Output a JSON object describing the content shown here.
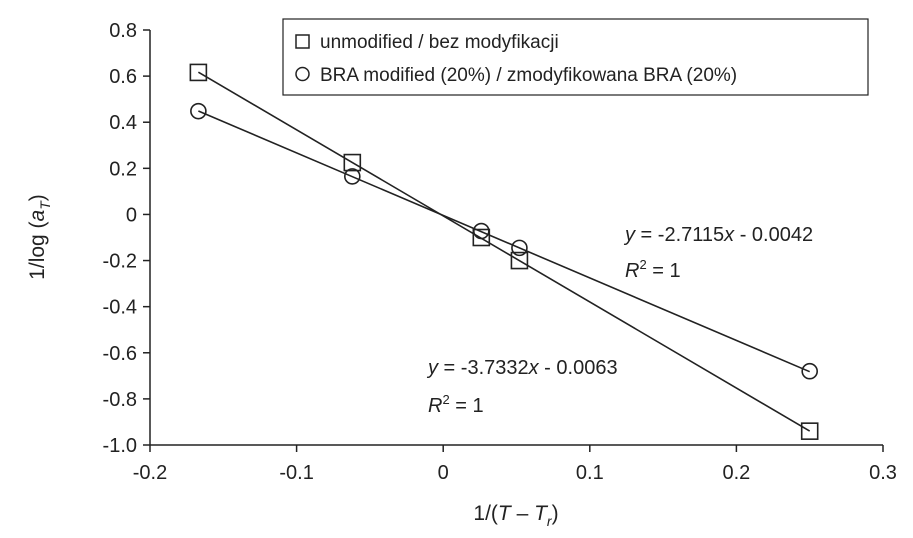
{
  "chart_data": {
    "type": "scatter",
    "xlabel": {
      "prefix": "1/(",
      "var": "T",
      "minus": " – ",
      "var2": "T",
      "sub": "r",
      "suffix": ")"
    },
    "ylabel": {
      "prefix": "1/log (",
      "var": "a",
      "sub": "T",
      "suffix": ")"
    },
    "xlim": [
      -0.2,
      0.3
    ],
    "ylim": [
      -1.0,
      0.8
    ],
    "xticks": [
      "-0.2",
      "-0.1",
      "0",
      "0.1",
      "0.2",
      "0.3"
    ],
    "yticks": [
      "0.8",
      "0.6",
      "0.4",
      "0.2",
      "0",
      "-0.2",
      "-0.4",
      "-0.6",
      "-0.8",
      "-1.0"
    ],
    "legend_position": "top-right",
    "grid": false,
    "series": [
      {
        "name": "unmodified / bez modyfikacji",
        "marker": "square",
        "x": [
          -0.167,
          -0.062,
          0.026,
          0.052,
          0.25
        ],
        "y": [
          0.616,
          0.225,
          -0.1,
          -0.2,
          -0.94
        ],
        "fit": {
          "slope": -3.7332,
          "intercept": -0.0063,
          "x_range": [
            -0.167,
            0.25
          ]
        },
        "equation": {
          "y": "y",
          "rest": " = -3.7332",
          "x": "x",
          "tail": " - 0.0063"
        },
        "r2": {
          "r": "R",
          "sup": "2",
          "rest": " = 1"
        }
      },
      {
        "name": "BRA modified (20%) / zmodyfikowana BRA (20%)",
        "marker": "circle",
        "x": [
          -0.167,
          -0.062,
          0.026,
          0.052,
          0.25
        ],
        "y": [
          0.448,
          0.165,
          -0.072,
          -0.145,
          -0.68
        ],
        "fit": {
          "slope": -2.7115,
          "intercept": -0.0042,
          "x_range": [
            -0.167,
            0.25
          ]
        },
        "equation": {
          "y": "y",
          "rest": " = -2.7115",
          "x": "x",
          "tail": " - 0.0042"
        },
        "r2": {
          "r": "R",
          "sup": "2",
          "rest": " = 1"
        }
      }
    ]
  }
}
